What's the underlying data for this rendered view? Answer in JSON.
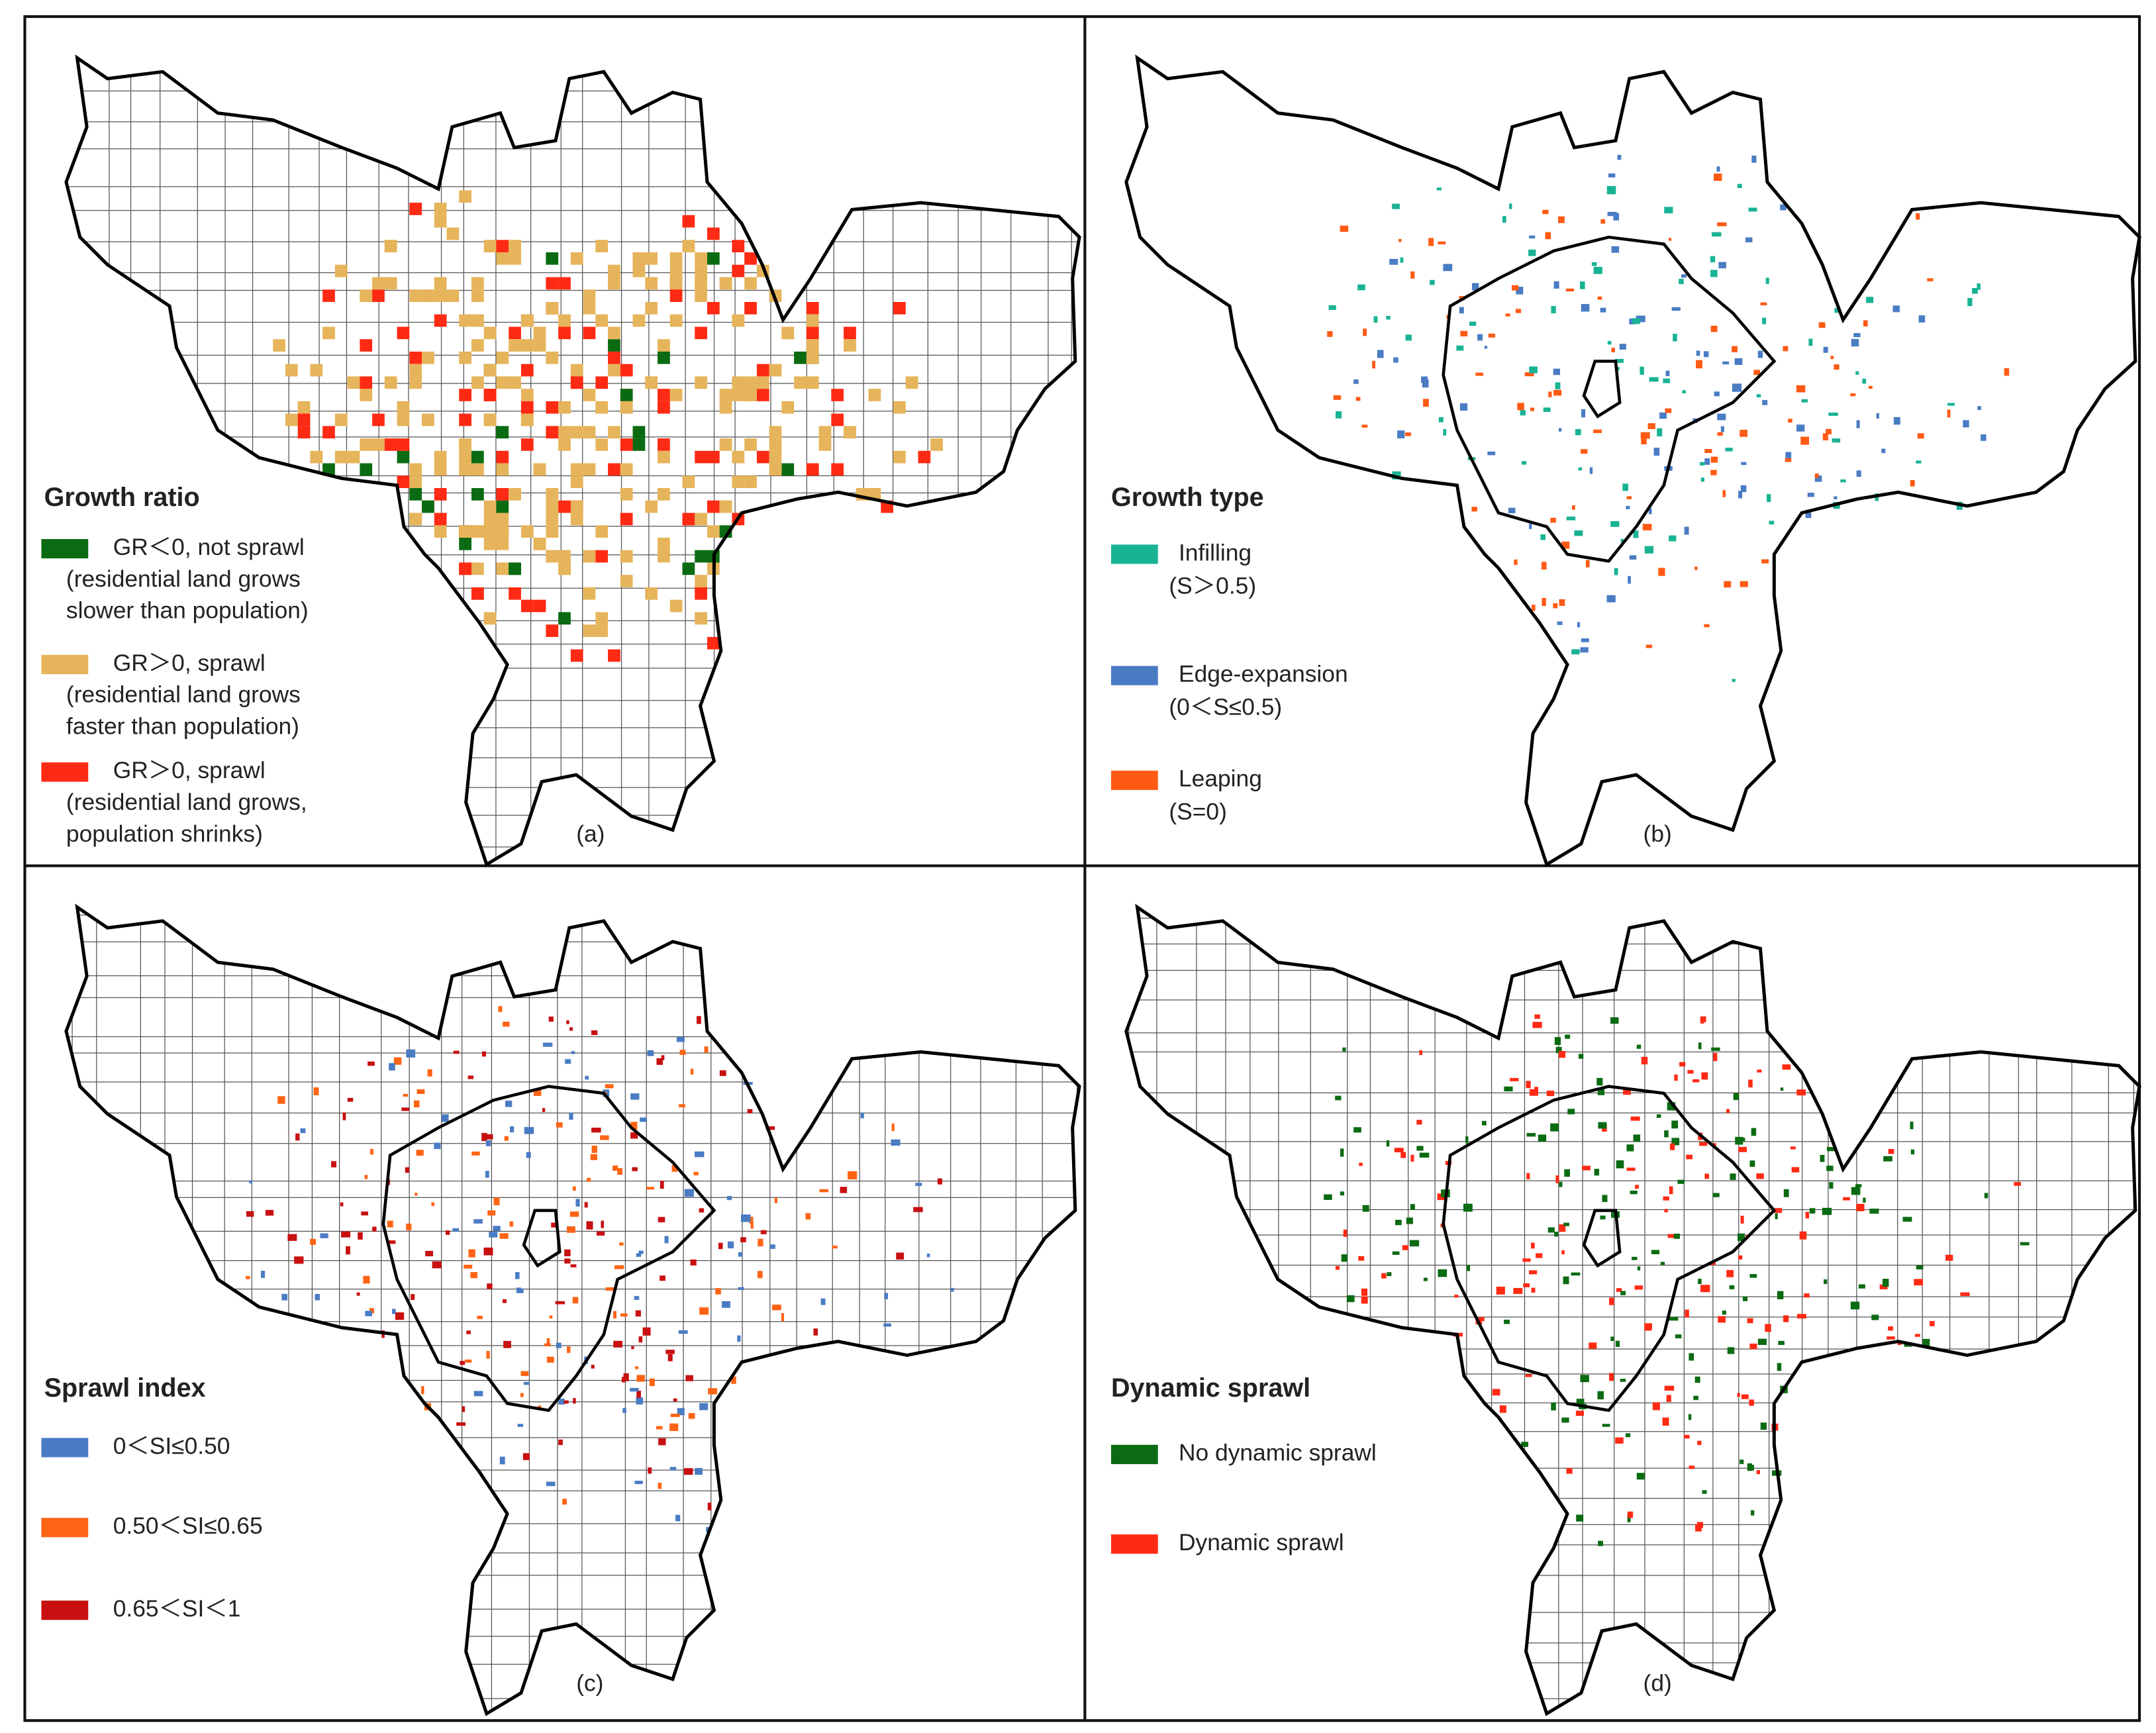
{
  "panels": [
    {
      "label": "(a)",
      "legend_title": "Growth ratio",
      "items": [
        {
          "lines": [
            "GR＜0, not sprawl",
            "(residential land grows",
            "slower than population)"
          ],
          "color": "#0b6b12"
        },
        {
          "lines": [
            "GR＞0, sprawl",
            "(residential land grows",
            "faster than population)"
          ],
          "color": "#e6b45a"
        },
        {
          "lines": [
            "GR＞0, sprawl",
            "(residential land grows,",
            "population shrinks)"
          ],
          "color": "#ff2a14"
        }
      ]
    },
    {
      "label": "(b)",
      "legend_title": "Growth type",
      "items": [
        {
          "lines": [
            "Infilling",
            "(S＞0.5)"
          ],
          "color": "#19b394"
        },
        {
          "lines": [
            "Edge-expansion",
            "(0＜S≤0.5)"
          ],
          "color": "#4a7cc4"
        },
        {
          "lines": [
            "Leaping",
            "(S=0)"
          ],
          "color": "#ff5a14"
        }
      ]
    },
    {
      "label": "(c)",
      "legend_title": "Sprawl index",
      "items": [
        {
          "lines": [
            "0＜SI≤0.50"
          ],
          "color": "#4a7cc4"
        },
        {
          "lines": [
            "0.50＜SI≤0.65"
          ],
          "color": "#ff6414"
        },
        {
          "lines": [
            "0.65＜SI＜1"
          ],
          "color": "#c81010"
        }
      ]
    },
    {
      "label": "(d)",
      "legend_title": "Dynamic sprawl",
      "items": [
        {
          "lines": [
            "No dynamic sprawl"
          ],
          "color": "#0b6b12"
        },
        {
          "lines": [
            "Dynamic sprawl"
          ],
          "color": "#ff2a14"
        }
      ]
    }
  ]
}
